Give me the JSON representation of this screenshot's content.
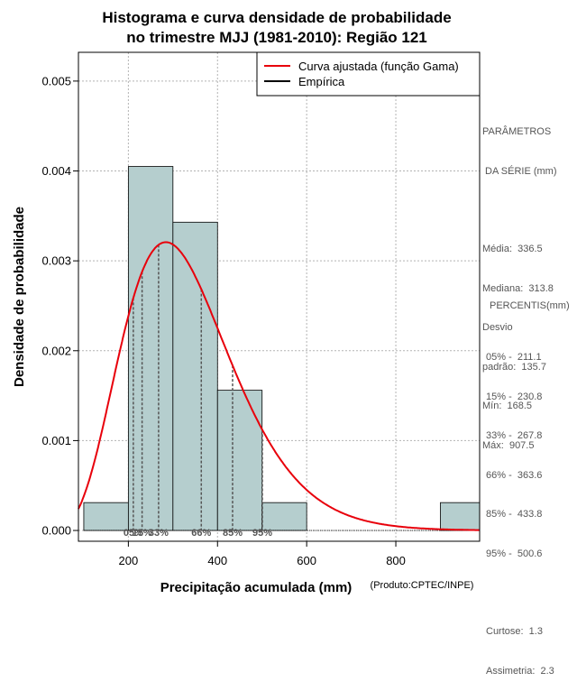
{
  "chart_data": {
    "type": "histogram",
    "title": [
      "Histograma e curva densidade de probabilidade",
      "no trimestre MJJ (1981-2010): Região 121"
    ],
    "xlabel": "Precipitação acumulada (mm)",
    "ylabel": "Densidade de probabilidade",
    "credit": "(Produto:CPTEC/INPE)",
    "xlim": [
      88,
      988
    ],
    "ylim": [
      -0.00012,
      0.00532
    ],
    "xticks": [
      200,
      400,
      600,
      800
    ],
    "yticks": [
      0.0,
      0.001,
      0.002,
      0.003,
      0.004,
      0.005
    ],
    "ytick_labels": [
      "0.000",
      "0.001",
      "0.002",
      "0.003",
      "0.004",
      "0.005"
    ],
    "bins": [
      {
        "from": 100,
        "to": 200,
        "density": 0.00031
      },
      {
        "from": 200,
        "to": 300,
        "density": 0.00405
      },
      {
        "from": 300,
        "to": 400,
        "density": 0.00343
      },
      {
        "from": 400,
        "to": 500,
        "density": 0.00156
      },
      {
        "from": 500,
        "to": 600,
        "density": 0.00031
      },
      {
        "from": 600,
        "to": 700,
        "density": 0.0
      },
      {
        "from": 700,
        "to": 800,
        "density": 0.0
      },
      {
        "from": 800,
        "to": 900,
        "density": 0.0
      },
      {
        "from": 900,
        "to": 1000,
        "density": 0.00031
      }
    ],
    "gamma_fit": {
      "shape": 6.38,
      "scale": 52.8
    },
    "percentile_markers": [
      {
        "label": "05%",
        "value": 211.1
      },
      {
        "label": "15%",
        "value": 230.8
      },
      {
        "label": "33%",
        "value": 267.8
      },
      {
        "label": "66%",
        "value": 363.6
      },
      {
        "label": "85%",
        "value": 433.8
      },
      {
        "label": "95%",
        "value": 500.6
      }
    ],
    "legend": [
      {
        "label": "Curva ajustada (função Gama)",
        "color": "#e8000b"
      },
      {
        "label": "Empírica",
        "color": "#000000"
      }
    ],
    "colors": {
      "bar": "#b5cece",
      "curve": "#e8000b",
      "grid": "#b3b3b3",
      "marker": "#555555"
    }
  },
  "params": {
    "heading_line1": "PARÂMETROS",
    "heading_line2": " DA SÉRIE (mm)",
    "items": [
      "Média:  336.5",
      "Mediana:  313.8",
      "Desvio",
      "padrão:  135.7",
      "Mín:  168.5",
      "Máx:  907.5"
    ]
  },
  "percentis": {
    "heading": "PERCENTIS(mm)",
    "items": [
      "05% -  211.1",
      "15% -  230.8",
      "33% -  267.8",
      "66% -  363.6",
      "85% -  433.8",
      "95% -  500.6"
    ],
    "stats": [
      "Curtose:  1.3",
      "Assimetria:  2.3"
    ]
  }
}
